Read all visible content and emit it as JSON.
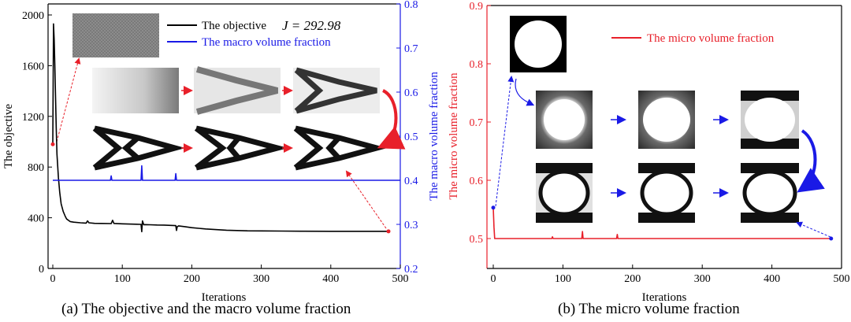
{
  "chart_data": [
    {
      "panel": "(a)",
      "type": "line",
      "caption": "(a) The objective and the macro volume fraction",
      "xlabel": "Iterations",
      "xlim": [
        0,
        500
      ],
      "xticks": [
        0,
        100,
        200,
        300,
        400,
        500
      ],
      "ylabel_left": "The objective",
      "ylim_left": [
        0,
        2000
      ],
      "yticks_left": [
        0,
        400,
        800,
        1200,
        1600,
        2000
      ],
      "ylabel_right": "The macro volume fraction",
      "ylim_right": [
        0.2,
        0.8
      ],
      "yticks_right": [
        "0.2",
        "0.3",
        "0.4",
        "0.5",
        "0.6",
        "0.7",
        "0.8"
      ],
      "grid": false,
      "legend_position": "top-center",
      "annotation": "J = 292.98",
      "colors": {
        "objective": "#000000",
        "macro": "#1a1ae6",
        "right_axis": "#1a1ae6",
        "marker": "#e8202a"
      },
      "series": [
        {
          "name": "The objective",
          "axis": "left",
          "color": "#000000",
          "x": [
            0,
            1,
            2,
            3,
            4,
            5,
            6,
            8,
            10,
            12,
            15,
            18,
            20,
            25,
            30,
            40,
            48,
            50,
            52,
            60,
            70,
            84,
            86,
            88,
            100,
            110,
            120,
            127,
            128,
            129,
            131,
            133,
            140,
            150,
            160,
            170,
            177,
            178,
            179,
            181,
            190,
            200,
            220,
            250,
            280,
            300,
            330,
            360,
            400,
            440,
            483
          ],
          "y": [
            980,
            1930,
            1800,
            1600,
            1350,
            1100,
            900,
            720,
            600,
            510,
            450,
            410,
            390,
            370,
            365,
            360,
            358,
            375,
            360,
            356,
            355,
            354,
            380,
            355,
            352,
            350,
            349,
            348,
            290,
            375,
            345,
            346,
            345,
            343,
            342,
            340,
            338,
            300,
            330,
            336,
            330,
            322,
            312,
            302,
            297,
            296,
            295,
            294,
            293,
            293,
            292.98
          ]
        },
        {
          "name": "The macro volume fraction",
          "axis": "right",
          "color": "#1a1ae6",
          "x": [
            0,
            83,
            84,
            85,
            86,
            127,
            128,
            129,
            130,
            176,
            177,
            178,
            179,
            500
          ],
          "y": [
            0.4,
            0.4,
            0.41,
            0.4,
            0.4,
            0.4,
            0.433,
            0.4,
            0.4,
            0.4,
            0.415,
            0.4,
            0.4,
            0.4
          ]
        }
      ],
      "markers": [
        {
          "axis": "left",
          "x": 0,
          "y": 980
        },
        {
          "axis": "left",
          "x": 483,
          "y": 292.98
        }
      ]
    },
    {
      "panel": "(b)",
      "type": "line",
      "caption": "(b) The micro volume fraction",
      "xlabel": "Iterations",
      "xlim": [
        0,
        500
      ],
      "xticks": [
        0,
        100,
        200,
        300,
        400,
        500
      ],
      "ylabel": "The micro volume fraction",
      "ylim": [
        0.47,
        0.9
      ],
      "yticks": [
        "0.5",
        "0.6",
        "0.7",
        "0.8",
        "0.9"
      ],
      "grid": false,
      "legend_position": "top-right",
      "colors": {
        "micro": "#e8202a",
        "axis": "#e8202a",
        "marker": "#1a1ae6"
      },
      "series": [
        {
          "name": "The micro volume fraction",
          "color": "#e8202a",
          "x": [
            0,
            1,
            2,
            3,
            84,
            85,
            86,
            127,
            128,
            129,
            130,
            177,
            178,
            179,
            485
          ],
          "y": [
            0.553,
            0.52,
            0.5,
            0.5,
            0.5,
            0.503,
            0.5,
            0.5,
            0.512,
            0.5,
            0.5,
            0.5,
            0.507,
            0.5,
            0.5
          ]
        }
      ],
      "markers": [
        {
          "x": 0,
          "y": 0.553
        },
        {
          "x": 485,
          "y": 0.5
        }
      ]
    }
  ]
}
